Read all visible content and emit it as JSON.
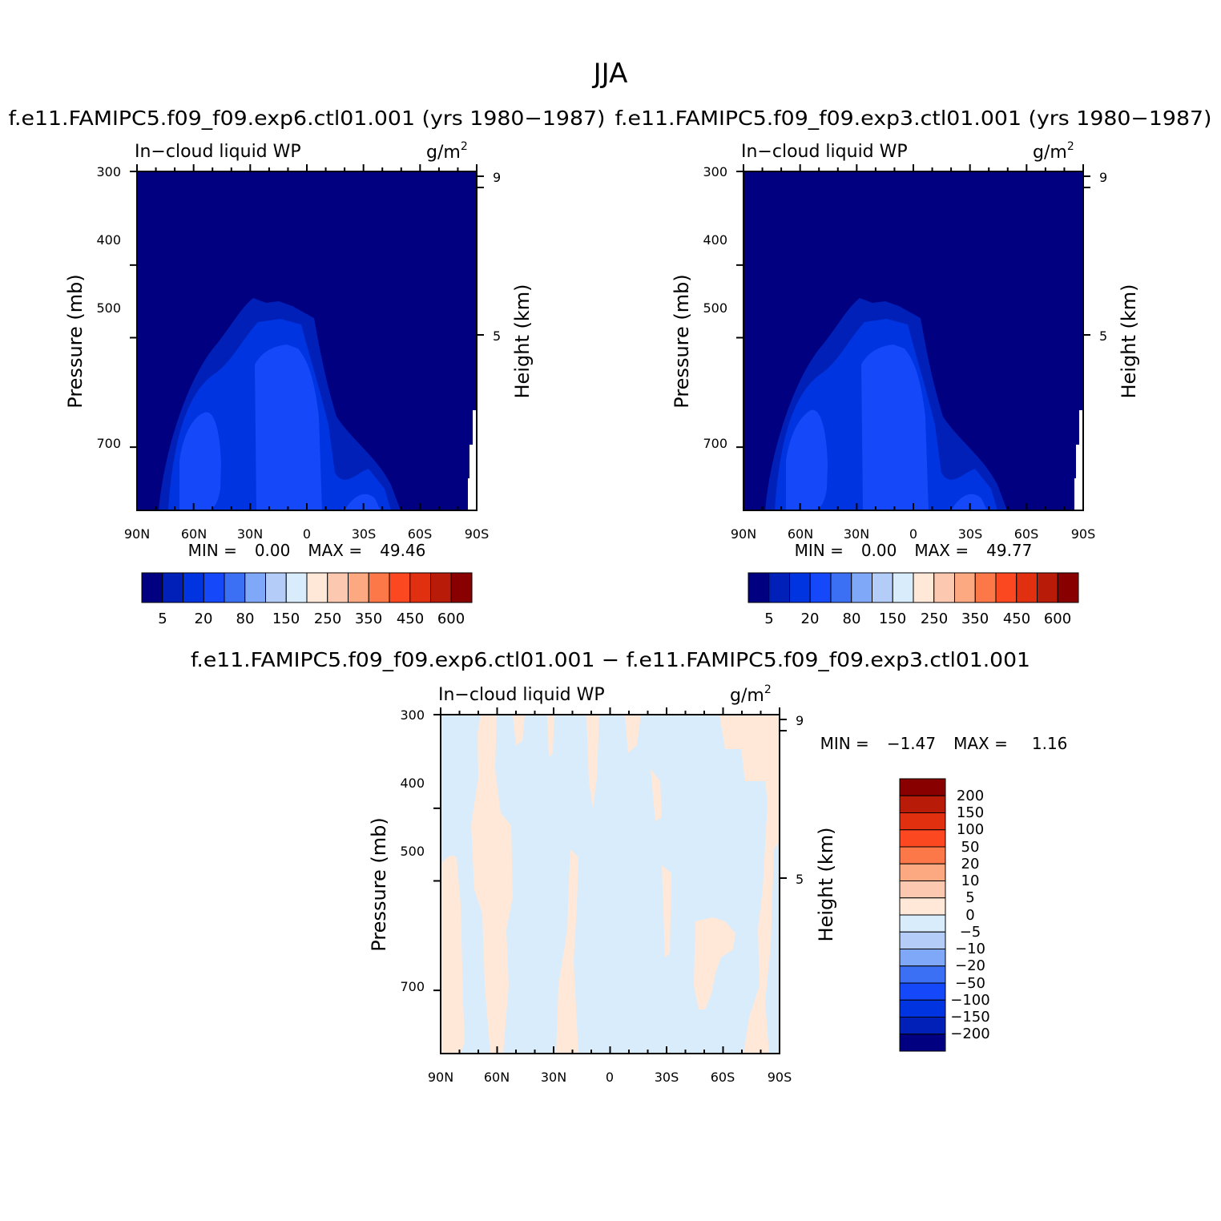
{
  "page_title": "JJA",
  "colors": {
    "abs_levels": [
      "#000080",
      "#0020b8",
      "#0034e0",
      "#1448f8",
      "#3c70f4",
      "#80a8f8",
      "#b4ccf8",
      "#d8ecfc",
      "#ffe8d8",
      "#fcc8b0",
      "#fca880",
      "#fc7848",
      "#fc4820",
      "#e03010",
      "#b81c08",
      "#880000"
    ],
    "diff_levels": [
      "#000080",
      "#0020b8",
      "#0034e0",
      "#1448f8",
      "#3c70f4",
      "#80a8f8",
      "#b4ccf8",
      "#d8ecfc",
      "#ffe8d8",
      "#fcc8b0",
      "#fca880",
      "#fc7848",
      "#fc4820",
      "#e03010",
      "#b81c08",
      "#880000"
    ]
  },
  "chart_data": [
    {
      "type": "heatmap",
      "title": "f.e11.FAMIPC5.f09_f09.exp6.ctl01.001 (yrs 1980−1987)",
      "subtitle_left": "In−cloud liquid WP",
      "units": "g/m",
      "units_sup": "2",
      "ylabel": "Pressure (mb)",
      "y2label": "Height (km)",
      "x_ticks": [
        "90N",
        "60N",
        "30N",
        "0",
        "30S",
        "60S",
        "90S"
      ],
      "y_ticks": [
        "300",
        "400",
        "500",
        "700"
      ],
      "y2_ticks": [
        "9",
        "5"
      ],
      "min_label": "MIN =",
      "min_value": "0.00",
      "max_label": "MAX =",
      "max_value": "49.46",
      "colorbar_labels": [
        "5",
        "20",
        "80",
        "150",
        "250",
        "350",
        "450",
        "600"
      ]
    },
    {
      "type": "heatmap",
      "title": "f.e11.FAMIPC5.f09_f09.exp3.ctl01.001 (yrs 1980−1987)",
      "subtitle_left": "In−cloud liquid WP",
      "units": "g/m",
      "units_sup": "2",
      "ylabel": "Pressure (mb)",
      "y2label": "Height (km)",
      "x_ticks": [
        "90N",
        "60N",
        "30N",
        "0",
        "30S",
        "60S",
        "90S"
      ],
      "y_ticks": [
        "300",
        "400",
        "500",
        "700"
      ],
      "y2_ticks": [
        "9",
        "5"
      ],
      "min_label": "MIN =",
      "min_value": "0.00",
      "max_label": "MAX =",
      "max_value": "49.77",
      "colorbar_labels": [
        "5",
        "20",
        "80",
        "150",
        "250",
        "350",
        "450",
        "600"
      ]
    },
    {
      "type": "heatmap",
      "title": "f.e11.FAMIPC5.f09_f09.exp6.ctl01.001 − f.e11.FAMIPC5.f09_f09.exp3.ctl01.001",
      "subtitle_left": "In−cloud liquid WP",
      "units": "g/m",
      "units_sup": "2",
      "ylabel": "Pressure (mb)",
      "y2label": "Height (km)",
      "x_ticks": [
        "90N",
        "60N",
        "30N",
        "0",
        "30S",
        "60S",
        "90S"
      ],
      "y_ticks": [
        "300",
        "400",
        "500",
        "700"
      ],
      "y2_ticks": [
        "9",
        "5"
      ],
      "min_label": "MIN =",
      "min_value": "−1.47",
      "max_label": "MAX =",
      "max_value": "1.16",
      "colorbar_labels": [
        "200",
        "150",
        "100",
        "50",
        "20",
        "10",
        "5",
        "0",
        "−5",
        "−10",
        "−20",
        "−50",
        "−100",
        "−150",
        "−200"
      ]
    }
  ]
}
